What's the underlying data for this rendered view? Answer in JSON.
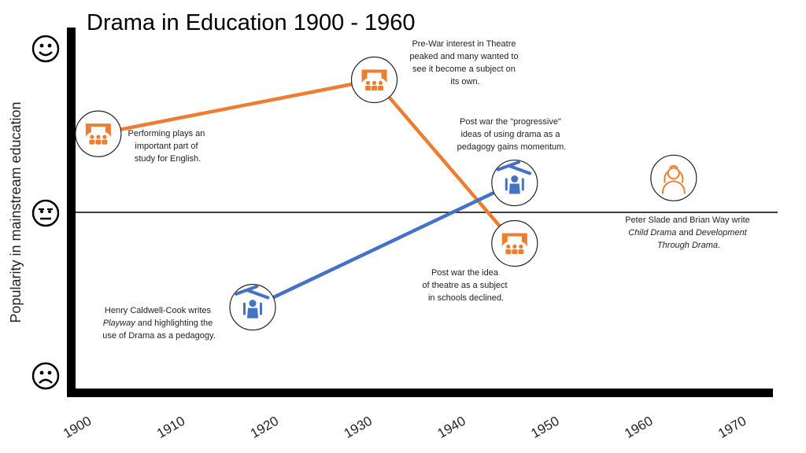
{
  "chart_data": {
    "type": "line",
    "title": "Drama in Education 1900 - 1960",
    "ylabel": "Popularity in mainstream education",
    "x_ticks": [
      "1900",
      "1910",
      "1920",
      "1930",
      "1940",
      "1950",
      "1960",
      "1970"
    ],
    "xlim": [
      1900,
      1970
    ],
    "ylim": [
      -1,
      1
    ],
    "y_markers": [
      {
        "icon": "happy-face-icon",
        "meaning": "popular",
        "y": 1
      },
      {
        "icon": "neutral-face-icon",
        "meaning": "neutral",
        "y": 0
      },
      {
        "icon": "sad-face-icon",
        "meaning": "unpopular",
        "y": -1
      }
    ],
    "series": [
      {
        "color": "#ED7D31",
        "points": [
          {
            "x": 1901,
            "y": 0.48,
            "icon": "theatre-stage-icon"
          },
          {
            "x": 1930.5,
            "y": 0.81,
            "icon": "theatre-stage-icon"
          },
          {
            "x": 1945.5,
            "y": -0.19,
            "icon": "theatre-stage-icon"
          }
        ]
      },
      {
        "color": "#4472C4",
        "points": [
          {
            "x": 1917.5,
            "y": -0.58,
            "icon": "puppet-icon"
          },
          {
            "x": 1945.5,
            "y": 0.18,
            "icon": "puppet-icon"
          }
        ]
      }
    ],
    "extra_markers": [
      {
        "x": 1962.5,
        "y": 0.21,
        "icon": "child-icon"
      }
    ],
    "annotations": {
      "performing": [
        "Performing plays an",
        "important part of",
        "study for English."
      ],
      "prewar": [
        "Pre-War interest in Theatre",
        "peaked and many wanted to",
        "see it become a subject on",
        "its own."
      ],
      "progressive": [
        "Post war the \"progressive\"",
        "ideas of using drama as a",
        "pedagogy gains momentum."
      ],
      "declined": [
        "Post war the idea",
        "of theatre as a subject",
        "in schools declined."
      ],
      "caldwell_line1": "Henry Caldwell-Cook writes",
      "caldwell_italic": "Playway",
      "caldwell_line2_rest": " and highlighting the",
      "caldwell_line3": "use of Drama as a pedagogy.",
      "slade_line1": "Peter Slade and Brian Way write",
      "slade_it1": "Child Drama",
      "slade_and": " and ",
      "slade_it2": "Development",
      "slade_it3": "Through Drama",
      "slade_end": "."
    },
    "grid": false,
    "legend": "none",
    "icon_color_orange": "#ED7D31",
    "icon_color_blue": "#4472C4"
  }
}
